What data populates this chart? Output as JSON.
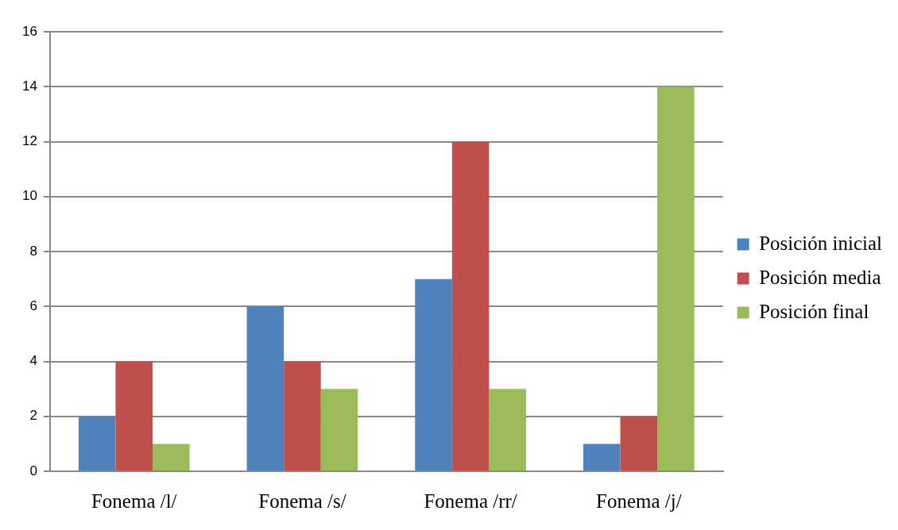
{
  "chart_data": {
    "type": "bar",
    "categories": [
      "Fonema /l/",
      "Fonema /s/",
      "Fonema /rr/",
      "Fonema /j/"
    ],
    "series": [
      {
        "name": "Posición inicial",
        "color": "#4f81bd",
        "values": [
          2,
          6,
          7,
          1
        ]
      },
      {
        "name": "Posición media",
        "color": "#c0504d",
        "values": [
          4,
          4,
          12,
          2
        ]
      },
      {
        "name": "Posición final",
        "color": "#9bbb59",
        "values": [
          1,
          3,
          3,
          14
        ]
      }
    ],
    "ylim": [
      0,
      16
    ],
    "yticks": [
      0,
      2,
      4,
      6,
      8,
      10,
      12,
      14,
      16
    ],
    "grid": "y",
    "legend": "right"
  }
}
